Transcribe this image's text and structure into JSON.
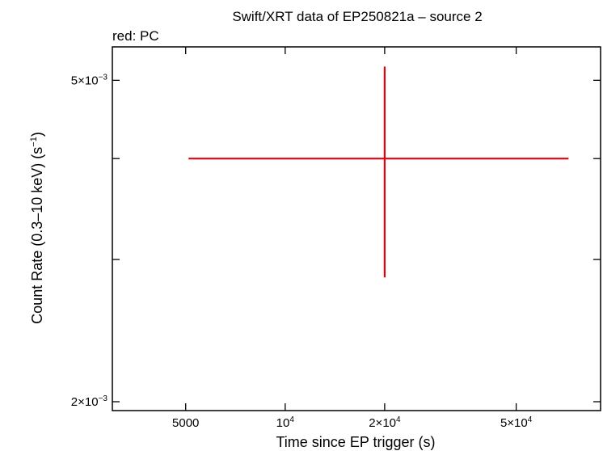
{
  "chart_data": {
    "type": "scatter",
    "title": "Swift/XRT data of EP250821a – source 2",
    "subtitle": "red: PC",
    "xlabel": "Time since EP trigger (s)",
    "ylabel_main": "Count Rate (0.3–10 keV) (s",
    "ylabel_sup": "−1",
    "ylabel_close": ")",
    "x_scale": "log",
    "y_scale": "log",
    "xlim": [
      3000,
      90000
    ],
    "ylim": [
      0.00195,
      0.0055
    ],
    "x_ticks": [
      {
        "value": 5000,
        "base": "5000",
        "exp": ""
      },
      {
        "value": 10000,
        "base": "10",
        "exp": "4"
      },
      {
        "value": 20000,
        "base": "2×10",
        "exp": "4"
      },
      {
        "value": 50000,
        "base": "5×10",
        "exp": "4"
      }
    ],
    "y_ticks": [
      {
        "value": 0.002,
        "base": "2×10",
        "exp": "−3",
        "labeled": true
      },
      {
        "value": 0.003,
        "labeled": false
      },
      {
        "value": 0.004,
        "labeled": false
      },
      {
        "value": 0.005,
        "base": "5×10",
        "exp": "−3",
        "labeled": true
      }
    ],
    "series": [
      {
        "color": "#e8000b",
        "points": [
          {
            "x": 20000,
            "xlo": 5100,
            "xhi": 72000,
            "y": 0.004,
            "ylo": 0.00285,
            "yhi": 0.0052
          }
        ]
      }
    ],
    "grid": false
  }
}
